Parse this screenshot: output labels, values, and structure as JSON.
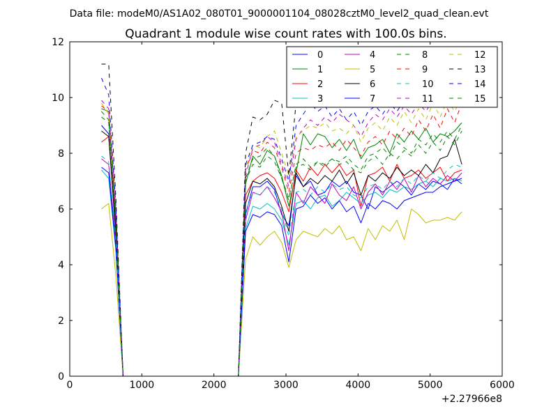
{
  "suptitle": "Data file: modeM0/AS1A02_080T01_9000001104_08028cztM0_level2_quad_clean.evt",
  "chart_data": {
    "type": "line",
    "title": "Quadrant 1 module wise count rates with 100.0s bins.",
    "xlabel": "",
    "ylabel": "",
    "x_offset_label": "+2.27966e8",
    "xlim": [
      0,
      6000
    ],
    "ylim": [
      0,
      12
    ],
    "x_ticks": [
      0,
      1000,
      2000,
      3000,
      4000,
      5000,
      6000
    ],
    "y_ticks": [
      0,
      2,
      4,
      6,
      8,
      10,
      12
    ],
    "x_tick_labels": [
      "0",
      "1000",
      "2000",
      "3000",
      "4000",
      "5000",
      "6000"
    ],
    "y_tick_labels": [
      "0",
      "2",
      "4",
      "6",
      "8",
      "10",
      "12"
    ],
    "grid": false,
    "legend": {
      "placement": "top-right",
      "columns": 4
    },
    "x": [
      440,
      540,
      640,
      740,
      840,
      940,
      1040,
      1140,
      1240,
      1340,
      1440,
      1540,
      1640,
      1740,
      1840,
      1940,
      2040,
      2140,
      2240,
      2340,
      2440,
      2540,
      2640,
      2740,
      2840,
      2940,
      3040,
      3140,
      3240,
      3340,
      3440,
      3540,
      3640,
      3740,
      3840,
      3940,
      4040,
      4140,
      4240,
      4340,
      4440,
      4540,
      4640,
      4740,
      4840,
      4940,
      5040,
      5140,
      5240,
      5340,
      5440
    ],
    "series": [
      {
        "name": "0",
        "color": "#0000ff",
        "dash": "solid",
        "values": [
          9.0,
          8.7,
          5.0,
          0,
          0,
          0,
          0,
          0,
          0,
          0,
          0,
          0,
          0,
          0,
          0,
          0,
          0,
          0,
          0,
          0,
          5.8,
          6.8,
          6.8,
          7.0,
          6.7,
          5.8,
          5.4,
          7.2,
          6.8,
          7.0,
          6.5,
          6.6,
          7.0,
          6.8,
          7.0,
          6.6,
          6.5,
          6.0,
          6.8,
          6.6,
          6.8,
          7.0,
          6.8,
          6.5,
          6.9,
          6.7,
          7.0,
          6.9,
          6.7,
          7.1,
          6.9
        ]
      },
      {
        "name": "1",
        "color": "#008000",
        "dash": "solid",
        "values": [
          9.6,
          9.5,
          5.5,
          0,
          0,
          0,
          0,
          0,
          0,
          0,
          0,
          0,
          0,
          0,
          0,
          0,
          0,
          0,
          0,
          0,
          6.9,
          7.9,
          7.6,
          8.1,
          7.9,
          7.2,
          6.1,
          7.3,
          8.7,
          8.3,
          8.7,
          8.6,
          8.2,
          8.5,
          8.1,
          8.5,
          7.8,
          8.2,
          8.3,
          8.5,
          8.0,
          8.7,
          8.4,
          8.8,
          8.5,
          8.9,
          8.4,
          8.7,
          8.6,
          8.8,
          9.1
        ]
      },
      {
        "name": "2",
        "color": "#ff0000",
        "dash": "solid",
        "values": [
          8.4,
          8.6,
          5.2,
          0,
          0,
          0,
          0,
          0,
          0,
          0,
          0,
          0,
          0,
          0,
          0,
          0,
          0,
          0,
          0,
          0,
          6.5,
          7.0,
          7.2,
          7.3,
          7.1,
          6.6,
          5.9,
          7.4,
          7.0,
          7.5,
          7.2,
          7.6,
          7.3,
          7.6,
          7.2,
          7.4,
          6.1,
          7.2,
          7.3,
          7.5,
          7.0,
          7.6,
          7.1,
          7.2,
          7.4,
          7.1,
          7.3,
          7.5,
          7.0,
          7.3,
          7.4
        ]
      },
      {
        "name": "3",
        "color": "#00bfbf",
        "dash": "solid",
        "values": [
          7.4,
          7.1,
          4.5,
          0,
          0,
          0,
          0,
          0,
          0,
          0,
          0,
          0,
          0,
          0,
          0,
          0,
          0,
          0,
          0,
          0,
          5.3,
          6.1,
          6.0,
          6.2,
          6.0,
          5.6,
          4.7,
          6.2,
          6.3,
          6.0,
          6.4,
          6.5,
          6.1,
          6.3,
          6.6,
          6.4,
          6.2,
          6.5,
          6.6,
          6.4,
          6.7,
          6.6,
          6.8,
          6.7,
          6.9,
          7.0,
          6.8,
          7.1,
          7.0,
          7.1,
          7.0
        ]
      },
      {
        "name": "4",
        "color": "#bf00bf",
        "dash": "solid",
        "values": [
          7.8,
          7.6,
          4.8,
          0,
          0,
          0,
          0,
          0,
          0,
          0,
          0,
          0,
          0,
          0,
          0,
          0,
          0,
          0,
          0,
          0,
          5.6,
          6.6,
          6.5,
          6.8,
          6.4,
          5.9,
          4.5,
          6.6,
          6.2,
          6.8,
          6.5,
          6.2,
          6.9,
          6.5,
          6.3,
          6.8,
          6.0,
          6.6,
          6.9,
          6.5,
          7.0,
          6.7,
          7.1,
          6.6,
          7.2,
          6.8,
          7.1,
          6.9,
          7.2,
          7.0,
          7.3
        ]
      },
      {
        "name": "5",
        "color": "#bfbf00",
        "dash": "solid",
        "values": [
          6.0,
          6.2,
          3.6,
          0,
          0,
          0,
          0,
          0,
          0,
          0,
          0,
          0,
          0,
          0,
          0,
          0,
          0,
          0,
          0,
          0,
          4.2,
          5.0,
          4.7,
          5.0,
          5.2,
          4.8,
          3.9,
          4.9,
          5.2,
          5.1,
          5.0,
          5.3,
          5.1,
          5.4,
          4.9,
          5.0,
          4.5,
          5.3,
          4.9,
          5.4,
          5.2,
          5.6,
          4.9,
          6.0,
          5.8,
          5.5,
          5.6,
          5.6,
          5.7,
          5.6,
          5.9
        ]
      },
      {
        "name": "6",
        "color": "#000000",
        "dash": "solid",
        "values": [
          8.8,
          8.6,
          5.3,
          0,
          0,
          0,
          0,
          0,
          0,
          0,
          0,
          0,
          0,
          0,
          0,
          0,
          0,
          0,
          0,
          0,
          6.2,
          7.0,
          6.9,
          7.1,
          6.8,
          6.1,
          5.2,
          7.3,
          6.8,
          7.1,
          6.9,
          7.2,
          7.0,
          7.4,
          6.9,
          7.3,
          6.5,
          7.2,
          7.0,
          7.3,
          7.1,
          7.5,
          7.2,
          7.4,
          7.2,
          7.6,
          7.3,
          7.8,
          7.9,
          8.5,
          7.6
        ]
      },
      {
        "name": "7",
        "color": "#0000ff",
        "dash": "solid",
        "values": [
          7.5,
          7.3,
          4.6,
          0,
          0,
          0,
          0,
          0,
          0,
          0,
          0,
          0,
          0,
          0,
          0,
          0,
          0,
          0,
          0,
          0,
          5.2,
          5.8,
          5.7,
          5.9,
          5.8,
          5.4,
          4.1,
          6.0,
          6.1,
          6.5,
          6.2,
          6.4,
          6.0,
          6.3,
          5.9,
          6.1,
          5.5,
          6.2,
          6.0,
          6.3,
          6.2,
          6.0,
          6.3,
          6.4,
          6.5,
          6.6,
          6.6,
          6.8,
          6.9,
          7.0,
          7.1
        ]
      },
      {
        "name": "8",
        "color": "#008000",
        "dash": "dashed",
        "values": [
          9.3,
          9.1,
          5.6,
          0,
          0,
          0,
          0,
          0,
          0,
          0,
          0,
          0,
          0,
          0,
          0,
          0,
          0,
          0,
          0,
          0,
          7.1,
          7.8,
          7.9,
          8.2,
          7.9,
          7.1,
          6.3,
          7.6,
          7.8,
          7.5,
          7.7,
          7.6,
          7.8,
          7.7,
          7.9,
          7.6,
          7.4,
          7.9,
          8.0,
          8.2,
          7.9,
          8.4,
          8.2,
          8.0,
          8.5,
          8.3,
          8.7,
          8.4,
          8.8,
          8.5,
          9.0
        ]
      },
      {
        "name": "9",
        "color": "#ff0000",
        "dash": "dashed",
        "values": [
          9.7,
          9.5,
          5.8,
          0,
          0,
          0,
          0,
          0,
          0,
          0,
          0,
          0,
          0,
          0,
          0,
          0,
          0,
          0,
          0,
          0,
          7.4,
          8.1,
          8.0,
          8.4,
          8.2,
          7.5,
          6.6,
          8.0,
          8.2,
          8.1,
          8.3,
          8.2,
          8.4,
          8.1,
          8.5,
          8.2,
          7.9,
          8.4,
          8.6,
          8.3,
          8.8,
          8.5,
          8.9,
          8.6,
          9.2,
          8.8,
          9.4,
          8.9,
          9.6,
          9.1,
          9.8
        ]
      },
      {
        "name": "10",
        "color": "#00bfbf",
        "dash": "dashed",
        "values": [
          7.9,
          7.7,
          4.9,
          0,
          0,
          0,
          0,
          0,
          0,
          0,
          0,
          0,
          0,
          0,
          0,
          0,
          0,
          0,
          0,
          0,
          5.9,
          6.6,
          6.5,
          6.8,
          6.6,
          6.0,
          5.0,
          6.6,
          6.7,
          6.5,
          6.8,
          6.6,
          6.9,
          6.7,
          6.8,
          6.5,
          6.4,
          6.8,
          6.9,
          6.7,
          7.0,
          6.8,
          7.1,
          6.9,
          7.2,
          7.0,
          7.3,
          7.1,
          7.4,
          7.6,
          7.5
        ]
      },
      {
        "name": "11",
        "color": "#bf00bf",
        "dash": "dashed",
        "values": [
          9.9,
          9.6,
          5.9,
          0,
          0,
          0,
          0,
          0,
          0,
          0,
          0,
          0,
          0,
          0,
          0,
          0,
          0,
          0,
          0,
          0,
          7.2,
          8.2,
          8.3,
          8.6,
          8.4,
          7.6,
          6.8,
          8.5,
          8.9,
          9.2,
          9.0,
          9.3,
          9.1,
          9.4,
          9.2,
          9.0,
          8.6,
          9.1,
          9.4,
          9.2,
          9.6,
          9.3,
          9.7,
          9.4,
          9.8,
          9.5,
          9.9,
          9.6,
          10.0,
          9.7,
          10.1
        ]
      },
      {
        "name": "12",
        "color": "#bfbf00",
        "dash": "dashed",
        "values": [
          9.8,
          9.4,
          5.7,
          0,
          0,
          0,
          0,
          0,
          0,
          0,
          0,
          0,
          0,
          0,
          0,
          0,
          0,
          0,
          0,
          0,
          7.5,
          8.3,
          8.2,
          8.6,
          8.8,
          8.0,
          7.2,
          8.6,
          8.8,
          9.0,
          8.9,
          9.1,
          8.8,
          8.9,
          8.7,
          9.0,
          8.4,
          8.9,
          9.1,
          8.8,
          9.3,
          9.0,
          9.5,
          9.1,
          9.6,
          9.2,
          9.8,
          9.3,
          9.9,
          9.5,
          10.0
        ]
      },
      {
        "name": "13",
        "color": "#000000",
        "dash": "dashed",
        "values": [
          11.2,
          11.2,
          6.4,
          0,
          0,
          0,
          0,
          0,
          0,
          0,
          0,
          0,
          0,
          0,
          0,
          0,
          0,
          0,
          0,
          0,
          8.0,
          9.3,
          9.2,
          9.4,
          9.9,
          9.8,
          7.2,
          9.8,
          10.1,
          9.8,
          10.2,
          10.0,
          10.3,
          10.1,
          10.0,
          10.3,
          9.6,
          10.4,
          10.2,
          10.6,
          10.3,
          10.8,
          10.5,
          10.9,
          10.6,
          10.8,
          10.7,
          11.0,
          10.9,
          11.1,
          11.0
        ]
      },
      {
        "name": "14",
        "color": "#0000ff",
        "dash": "dashed",
        "values": [
          10.7,
          10.1,
          6.1,
          0,
          0,
          0,
          0,
          0,
          0,
          0,
          0,
          0,
          0,
          0,
          0,
          0,
          0,
          0,
          0,
          0,
          7.6,
          8.3,
          8.4,
          8.6,
          8.5,
          7.8,
          7.0,
          9.0,
          9.4,
          9.8,
          9.5,
          9.7,
          9.3,
          9.6,
          9.2,
          9.5,
          9.0,
          9.5,
          9.7,
          9.4,
          9.8,
          9.5,
          9.9,
          9.7,
          10.1,
          9.8,
          10.2,
          9.9,
          10.3,
          10.0,
          9.8
        ]
      },
      {
        "name": "15",
        "color": "#008000",
        "dash": "dashed",
        "values": [
          9.5,
          9.2,
          5.6,
          0,
          0,
          0,
          0,
          0,
          0,
          0,
          0,
          0,
          0,
          0,
          0,
          0,
          0,
          0,
          0,
          0,
          7.0,
          7.6,
          7.5,
          7.9,
          7.7,
          7.1,
          6.4,
          7.5,
          7.6,
          7.4,
          7.7,
          7.5,
          7.8,
          7.6,
          7.7,
          7.4,
          7.3,
          7.7,
          7.9,
          7.6,
          8.0,
          7.8,
          8.1,
          7.9,
          8.3,
          8.0,
          8.4,
          8.1,
          8.6,
          8.3,
          8.8
        ]
      }
    ]
  }
}
